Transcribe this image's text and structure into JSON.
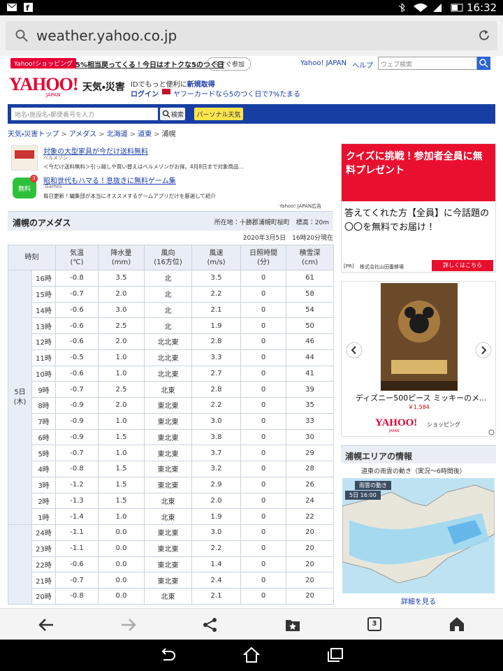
{
  "status_bar": {
    "time": "16:32"
  },
  "url_bar": {
    "url": "weather.yahoo.co.jp"
  },
  "promo": {
    "badge": "Yahoo!ショッピング",
    "text": "5%相当戻ってくる！今日はオトクな5のつく日",
    "button": "今すぐ参加"
  },
  "top_links": [
    "Yahoo! JAPAN",
    "ヘルプ"
  ],
  "web_search_placeholder": "ウェブ検索",
  "header": {
    "brand": "YAHOO!",
    "brand_sub": "JAPAN",
    "section": "天気・災害",
    "id_text": "IDでもっと便利に",
    "id_link": "新規取得",
    "login": "ログイン",
    "card_text": "ヤフーカードなら5のつく日で7%たまる"
  },
  "search": {
    "placeholder": "地名・施設名・郵便番号を入力",
    "button": "検索",
    "personal": "パーソナル天気"
  },
  "breadcrumb": [
    "天気・災害トップ",
    "アメダス",
    "北海道",
    "道東",
    "浦幌"
  ],
  "ads": [
    {
      "title": "対象の大型家具が今だけ送料無料",
      "sponsor": "ベルメゾン",
      "desc": "＜今だけ送料無料＞引っ越しや買い替えはベルメゾンがお得。4月8日まで対象商品..."
    },
    {
      "title": "昭和世代もハマる！息抜きに無料ゲーム集",
      "sponsor": ".Games",
      "desc": "毎日更新！編集部が本当にオススメするゲームアプリだけを厳選して紹介",
      "icon_text": "無料",
      "badge": "3"
    }
  ],
  "ad_label": "Yahoo! JAPAN広告",
  "amedas": {
    "title": "浦幌のアメダス",
    "location": "所在地：十勝郡浦幌町桜町　標高：20m",
    "timestamp": "2020年3月5日　16時20分現在",
    "headers": [
      {
        "name": "時刻"
      },
      {
        "name": "気温",
        "unit": "(℃)"
      },
      {
        "name": "降水量",
        "unit": "(mm)"
      },
      {
        "name": "風向",
        "unit": "(16方位)"
      },
      {
        "name": "風速",
        "unit": "(m/s)"
      },
      {
        "name": "日照時間",
        "unit": "(分)"
      },
      {
        "name": "積雪深",
        "unit": "(cm)"
      }
    ],
    "day_groups": [
      {
        "day": "5日",
        "weekday": "(木)",
        "rows": [
          [
            "16時",
            "-0.8",
            "3.5",
            "北",
            "3.5",
            "0",
            "61"
          ],
          [
            "15時",
            "-0.7",
            "2.0",
            "北",
            "2.2",
            "0",
            "58"
          ],
          [
            "14時",
            "-0.6",
            "3.0",
            "北",
            "2.1",
            "0",
            "54"
          ],
          [
            "13時",
            "-0.6",
            "2.5",
            "北",
            "1.9",
            "0",
            "50"
          ],
          [
            "12時",
            "-0.6",
            "2.0",
            "北北東",
            "2.8",
            "0",
            "46"
          ],
          [
            "11時",
            "-0.5",
            "1.0",
            "北北東",
            "3.3",
            "0",
            "44"
          ],
          [
            "10時",
            "-0.6",
            "1.0",
            "北北東",
            "2.7",
            "0",
            "41"
          ],
          [
            "9時",
            "-0.7",
            "2.5",
            "北東",
            "2.8",
            "0",
            "39"
          ],
          [
            "8時",
            "-0.9",
            "2.0",
            "東北東",
            "2.2",
            "0",
            "35"
          ],
          [
            "7時",
            "-0.9",
            "1.0",
            "東北東",
            "3.0",
            "0",
            "33"
          ],
          [
            "6時",
            "-0.9",
            "1.5",
            "東北東",
            "3.8",
            "0",
            "30"
          ],
          [
            "5時",
            "-0.7",
            "1.0",
            "東北東",
            "3.7",
            "0",
            "29"
          ],
          [
            "4時",
            "-0.8",
            "1.5",
            "東北東",
            "3.2",
            "0",
            "28"
          ],
          [
            "3時",
            "-1.2",
            "1.5",
            "東北東",
            "2.9",
            "0",
            "26"
          ],
          [
            "2時",
            "-1.3",
            "1.5",
            "北東",
            "2.0",
            "0",
            "24"
          ],
          [
            "1時",
            "-1.4",
            "1.0",
            "北東",
            "1.9",
            "0",
            "22"
          ]
        ]
      },
      {
        "rows": [
          [
            "24時",
            "-1.1",
            "0.0",
            "東北東",
            "3.0",
            "0",
            "20"
          ],
          [
            "23時",
            "-1.1",
            "0.0",
            "東北東",
            "2.2",
            "0",
            "20"
          ],
          [
            "22時",
            "-0.6",
            "0.0",
            "東北東",
            "1.4",
            "0",
            "20"
          ],
          [
            "21時",
            "-0.7",
            "0.0",
            "東北東",
            "2.4",
            "0",
            "20"
          ],
          [
            "20時",
            "-0.8",
            "0.0",
            "北東",
            "2.1",
            "0",
            "20"
          ]
        ]
      }
    ]
  },
  "right_ad": {
    "title": "クイズに挑戦！参加者全員に無料プレゼント",
    "body": "答えてくれた方【全員】に今話題の〇〇を無料でお届け！",
    "pr": "[PR]",
    "company": "株式会社山田養蜂場",
    "button": "詳しくはこちら"
  },
  "product": {
    "name": "ディズニー500ピース ミッキーのメ...",
    "price": "￥1,584",
    "shop_brand": "YAHOO!",
    "shop_brand_sub": "JAPAN",
    "shop_name": "ショッピング"
  },
  "area": {
    "title": "浦幌エリアの情報",
    "map_caption": "道東の雨雲の動き（実況〜6時間後）",
    "map_label": "雨雲の動き",
    "map_time": "5日 16:00",
    "link": "詳細を見る"
  },
  "browser_nav": {
    "tab_count": "3"
  }
}
